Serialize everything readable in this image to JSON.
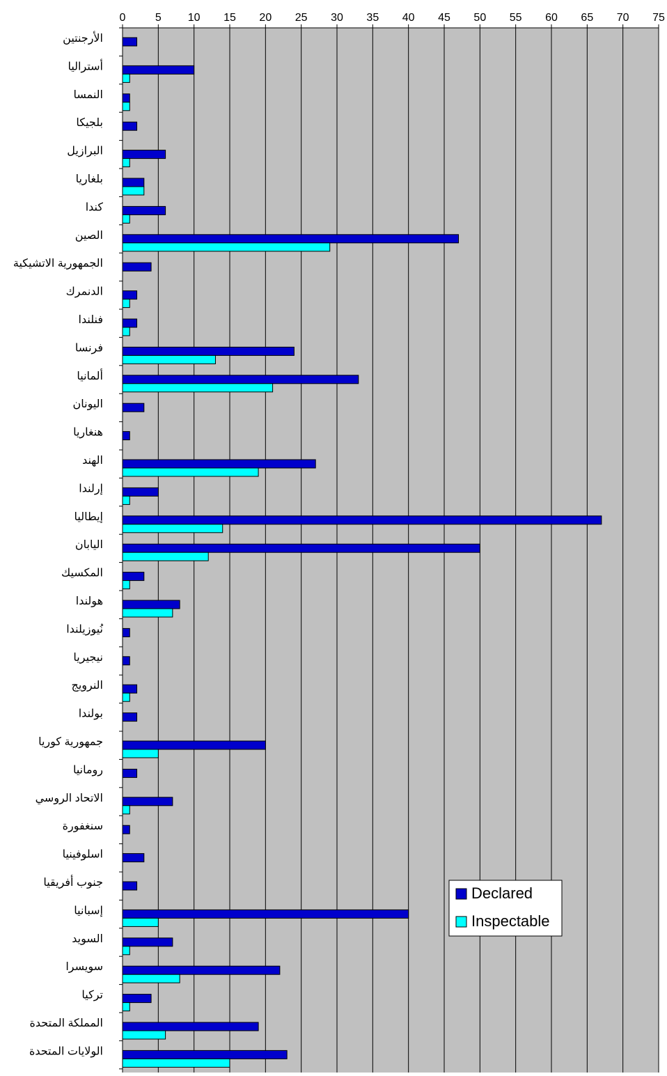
{
  "chart_data": {
    "type": "bar",
    "orientation": "horizontal",
    "title": "",
    "xlabel": "",
    "ylabel": "",
    "xlim": [
      0,
      75
    ],
    "x_ticks": [
      "0",
      "5",
      "10",
      "15",
      "20",
      "25",
      "30",
      "35",
      "40",
      "45",
      "50",
      "55",
      "60",
      "65",
      "70",
      "75"
    ],
    "x_axis_position": "top",
    "grid": true,
    "plot_background": "#c0c0c0",
    "legend_position": "bottom-right",
    "categories": [
      "الأرجنتين",
      "أستراليا",
      "النمسا",
      "بلجيكا",
      "البرازيل",
      "بلغاريا",
      "كندا",
      "الصين",
      "الجمهورية الاتشيكية",
      "الدنمرك",
      "فنلندا",
      "فرنسا",
      "ألمانيا",
      "اليونان",
      "هنغاريا",
      "الهند",
      "إرلندا",
      "إيطاليا",
      "اليابان",
      "المكسيك",
      "هولندا",
      "نُيوزيلندا",
      "نيجيريا",
      "النرويج",
      "بولندا",
      "جمهورية كوريا",
      "رومانيا",
      "الاتحاد الروسي",
      "سنغفورة",
      "اسلوفينيا",
      "جنوب أفريقيا",
      "إسبانيا",
      "السويد",
      "سويسرا",
      "تركيا",
      "المملكة المتحدة",
      "الولايات المتحدة"
    ],
    "series": [
      {
        "name": "Declared",
        "color": "#0000cc",
        "values": [
          2,
          10,
          1,
          2,
          6,
          3,
          6,
          47,
          4,
          2,
          2,
          24,
          33,
          3,
          1,
          27,
          5,
          67,
          50,
          3,
          8,
          1,
          1,
          2,
          2,
          20,
          2,
          7,
          1,
          3,
          2,
          40,
          7,
          22,
          4,
          19,
          23
        ]
      },
      {
        "name": "Inspectable",
        "color": "#00ffff",
        "values": [
          0,
          1,
          1,
          0,
          1,
          3,
          1,
          29,
          0,
          1,
          1,
          13,
          21,
          0,
          0,
          19,
          1,
          14,
          12,
          1,
          7,
          0,
          0,
          1,
          0,
          5,
          0,
          1,
          0,
          0,
          0,
          5,
          1,
          8,
          1,
          6,
          15
        ]
      }
    ]
  }
}
